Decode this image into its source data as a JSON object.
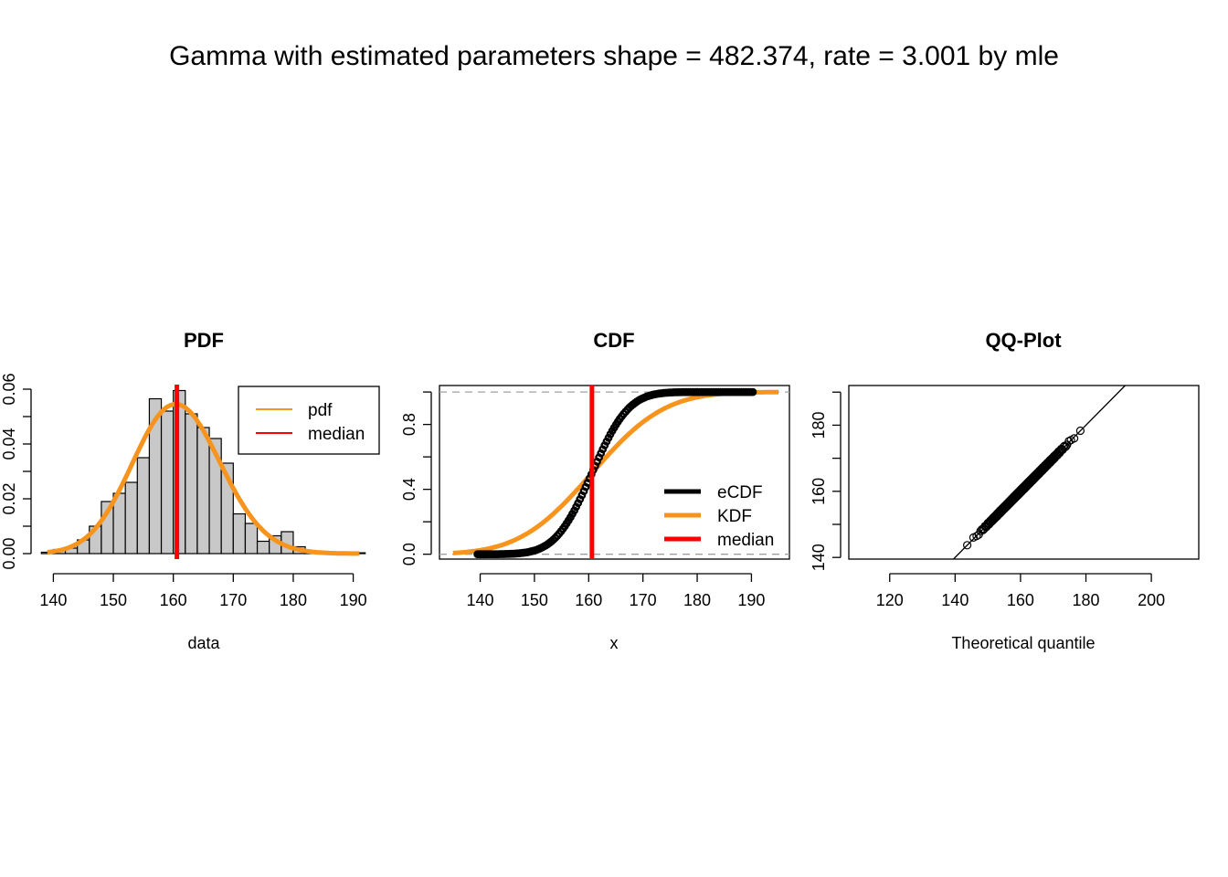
{
  "title": "Gamma with estimated parameters shape = 482.374, rate = 3.001 by mle",
  "colors": {
    "pdf": "#f7941d",
    "median": "#ff0000",
    "ecdf": "#000000",
    "hist_fill": "#c8c8c8",
    "ref_line": "#a0a0a0"
  },
  "chart_data": [
    {
      "type": "bar",
      "title": "PDF",
      "xlabel": "data",
      "ylabel": "",
      "xlim": [
        137.5,
        192.5
      ],
      "ylim": [
        0,
        0.06
      ],
      "x_ticks": [
        140,
        150,
        160,
        170,
        180,
        190
      ],
      "y_ticks": [
        0.0,
        0.01,
        0.02,
        0.03,
        0.04,
        0.05,
        0.06
      ],
      "y_tick_labels": [
        "0.00",
        "",
        "0.02",
        "",
        "0.04",
        "",
        "0.06"
      ],
      "bins": [
        {
          "x0": 138,
          "x1": 140,
          "density": 0.0005
        },
        {
          "x0": 140,
          "x1": 142,
          "density": 0.0015
        },
        {
          "x0": 142,
          "x1": 144,
          "density": 0.002
        },
        {
          "x0": 144,
          "x1": 146,
          "density": 0.005
        },
        {
          "x0": 146,
          "x1": 148,
          "density": 0.01
        },
        {
          "x0": 148,
          "x1": 150,
          "density": 0.019
        },
        {
          "x0": 150,
          "x1": 152,
          "density": 0.022
        },
        {
          "x0": 152,
          "x1": 154,
          "density": 0.026
        },
        {
          "x0": 154,
          "x1": 156,
          "density": 0.035
        },
        {
          "x0": 156,
          "x1": 158,
          "density": 0.0565
        },
        {
          "x0": 158,
          "x1": 160,
          "density": 0.052
        },
        {
          "x0": 160,
          "x1": 162,
          "density": 0.0595
        },
        {
          "x0": 162,
          "x1": 164,
          "density": 0.051
        },
        {
          "x0": 164,
          "x1": 166,
          "density": 0.046
        },
        {
          "x0": 166,
          "x1": 168,
          "density": 0.042
        },
        {
          "x0": 168,
          "x1": 170,
          "density": 0.033
        },
        {
          "x0": 170,
          "x1": 172,
          "density": 0.0145
        },
        {
          "x0": 172,
          "x1": 174,
          "density": 0.011
        },
        {
          "x0": 174,
          "x1": 176,
          "density": 0.0045
        },
        {
          "x0": 176,
          "x1": 178,
          "density": 0.0065
        },
        {
          "x0": 178,
          "x1": 180,
          "density": 0.008
        },
        {
          "x0": 180,
          "x1": 182,
          "density": 0.0025
        },
        {
          "x0": 182,
          "x1": 184,
          "density": 0.001
        },
        {
          "x0": 184,
          "x1": 186,
          "density": 0.0003
        },
        {
          "x0": 190,
          "x1": 192,
          "density": 0.0003
        }
      ],
      "pdf": {
        "shape": 482.374,
        "rate": 3.001,
        "x_from": 139,
        "x_to": 191
      },
      "median": 160.6,
      "legend": {
        "position": "top-right",
        "entries": [
          "pdf",
          "median"
        ]
      }
    },
    {
      "type": "line",
      "title": "CDF",
      "xlabel": "x",
      "ylabel": "",
      "xlim": [
        132.5,
        197
      ],
      "ylim": [
        -0.03,
        1.04
      ],
      "x_ticks": [
        140,
        150,
        160,
        170,
        180,
        190
      ],
      "y_ticks": [
        0.0,
        0.2,
        0.4,
        0.6,
        0.8,
        1.0
      ],
      "y_tick_labels": [
        "0.0",
        "",
        "0.4",
        "",
        "0.8",
        ""
      ],
      "ecdf": {
        "mean": 160.6,
        "sd": 5.3,
        "x_from": 139.5,
        "x_to": 190.5
      },
      "kdf": {
        "mean": 160.6,
        "sd": 10.5,
        "x_from": 135,
        "x_to": 195
      },
      "median": 160.6,
      "ref_lines": [
        0,
        1
      ],
      "legend": {
        "position": "bottom-right",
        "entries": [
          "eCDF",
          "KDF",
          "median"
        ]
      }
    },
    {
      "type": "scatter",
      "title": "QQ-Plot",
      "xlabel": "Theoretical quantile",
      "ylabel": "",
      "xlim": [
        107.5,
        214.5
      ],
      "ylim": [
        139.5,
        192
      ],
      "x_ticks": [
        120,
        140,
        160,
        180,
        200
      ],
      "y_ticks": [
        140,
        150,
        160,
        170,
        180,
        190
      ],
      "y_tick_labels": [
        "140",
        "",
        "160",
        "",
        "180",
        ""
      ],
      "points": {
        "n": 500,
        "x_from": 142.5,
        "x_to": 180
      },
      "reference_line": {
        "slope": 1,
        "intercept": 0
      }
    }
  ]
}
